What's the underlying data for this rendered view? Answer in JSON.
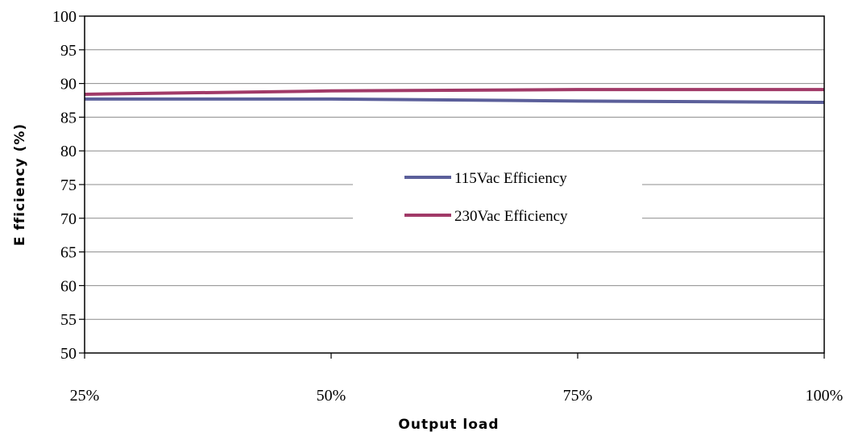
{
  "chart_data": {
    "type": "line",
    "title": "",
    "xlabel": "Output load",
    "ylabel": "E fficiency (%)",
    "categories": [
      "25%",
      "50%",
      "75%",
      "100%"
    ],
    "ylim": [
      50,
      100
    ],
    "yticks": [
      50,
      55,
      60,
      65,
      70,
      75,
      80,
      85,
      90,
      95,
      100
    ],
    "grid": true,
    "legend_position": "center",
    "series": [
      {
        "name": "115Vac Efficiency",
        "values": [
          87.7,
          87.7,
          87.4,
          87.2
        ],
        "color": "#5b5f9a"
      },
      {
        "name": "230Vac Efficiency",
        "values": [
          88.4,
          88.9,
          89.1,
          89.1
        ],
        "color": "#a13a68"
      }
    ]
  }
}
